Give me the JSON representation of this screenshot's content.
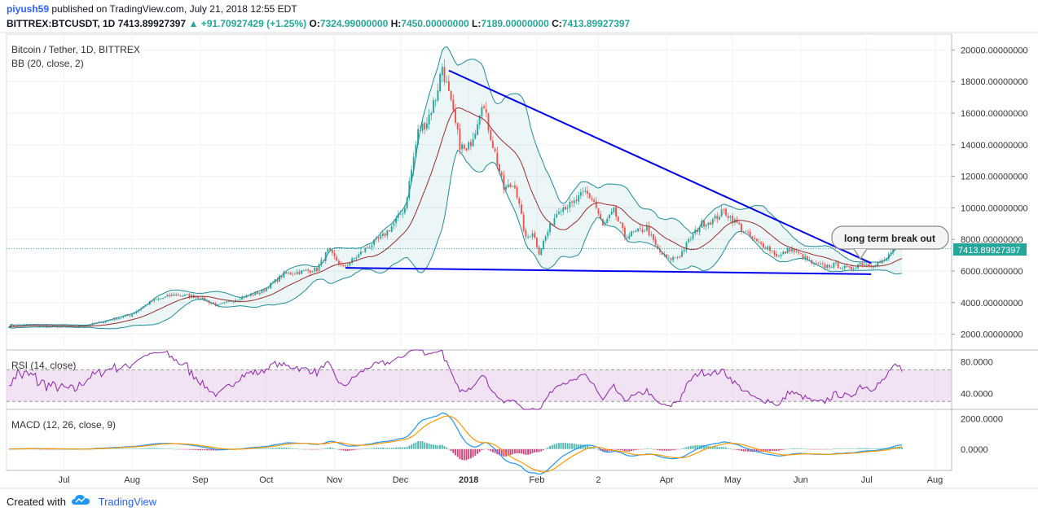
{
  "header": {
    "publisher": "piyush59",
    "published_text": "published on TradingView.com, July 21, 2018 12:55 EDT",
    "symbol": "BITTREX:BTCUSDT, 1D",
    "last": "7413.89927397",
    "change": "+91.70927429 (+1.25%)",
    "o_label": "O:",
    "o_value": "7324.99000000",
    "h_label": "H:",
    "h_value": "7450.00000000",
    "l_label": "L:",
    "l_value": "7189.00000000",
    "c_label": "C:",
    "c_value": "7413.89927397"
  },
  "footer": {
    "created_with": "Created with",
    "brand": "TradingView"
  },
  "colors": {
    "up": "#26a69a",
    "down": "#ef5350",
    "bb": "#1e8c99",
    "basis": "#9c2a2a",
    "trend": "#0000ee",
    "rsi": "#8e24aa",
    "macd": "#2196f3",
    "signal": "#ff9800"
  },
  "chart_data": [
    {
      "type": "candlestick",
      "title": "Bitcoin / Tether, 1D, BITTREX",
      "indicator": "BB (20, close, 2)",
      "ylim": [
        1000,
        21000
      ],
      "yticks": [
        2000,
        4000,
        6000,
        8000,
        10000,
        12000,
        14000,
        16000,
        18000,
        20000
      ],
      "ytick_labels": [
        "2000.00000000",
        "4000.00000000",
        "6000.00000000",
        "8000.00000000",
        "10000.00000000",
        "12000.00000000",
        "14000.00000000",
        "16000.00000000",
        "18000.00000000",
        "20000.00000000"
      ],
      "last_price_label": "7413.89927397",
      "last_price": 7413.9,
      "x_labels": [
        "Jul",
        "Aug",
        "Sep",
        "Oct",
        "Nov",
        "Dec",
        "2018",
        "Feb",
        "2",
        "Apr",
        "May",
        "Jun",
        "Jul",
        "Aug"
      ],
      "x_label_day": [
        25,
        56,
        87,
        117,
        148,
        178,
        209,
        240,
        268,
        299,
        329,
        360,
        390,
        421
      ],
      "price_anchors": [
        [
          0,
          2500
        ],
        [
          10,
          2550
        ],
        [
          20,
          2500
        ],
        [
          30,
          2450
        ],
        [
          40,
          2700
        ],
        [
          55,
          3200
        ],
        [
          65,
          4100
        ],
        [
          75,
          4500
        ],
        [
          85,
          4400
        ],
        [
          95,
          3800
        ],
        [
          105,
          4300
        ],
        [
          115,
          4700
        ],
        [
          125,
          5800
        ],
        [
          140,
          6100
        ],
        [
          145,
          7300
        ],
        [
          152,
          6200
        ],
        [
          158,
          6900
        ],
        [
          163,
          7500
        ],
        [
          170,
          8200
        ],
        [
          175,
          9000
        ],
        [
          180,
          10000
        ],
        [
          186,
          14800
        ],
        [
          190,
          15500
        ],
        [
          194,
          17000
        ],
        [
          197,
          19000
        ],
        [
          201,
          16500
        ],
        [
          205,
          14000
        ],
        [
          208,
          13500
        ],
        [
          212,
          15000
        ],
        [
          215,
          16800
        ],
        [
          220,
          14000
        ],
        [
          225,
          11200
        ],
        [
          230,
          11500
        ],
        [
          235,
          8000
        ],
        [
          238,
          8500
        ],
        [
          241,
          7200
        ],
        [
          245,
          8500
        ],
        [
          250,
          10000
        ],
        [
          256,
          10200
        ],
        [
          262,
          11000
        ],
        [
          266,
          10400
        ],
        [
          270,
          8800
        ],
        [
          275,
          9800
        ],
        [
          280,
          8200
        ],
        [
          290,
          8700
        ],
        [
          295,
          7300
        ],
        [
          300,
          6700
        ],
        [
          305,
          7000
        ],
        [
          310,
          8100
        ],
        [
          315,
          9000
        ],
        [
          320,
          9200
        ],
        [
          325,
          9800
        ],
        [
          331,
          9000
        ],
        [
          335,
          8400
        ],
        [
          340,
          7800
        ],
        [
          345,
          7500
        ],
        [
          350,
          6900
        ],
        [
          355,
          7400
        ],
        [
          360,
          7000
        ],
        [
          366,
          6400
        ],
        [
          371,
          6300
        ],
        [
          376,
          6400
        ],
        [
          382,
          6100
        ],
        [
          387,
          6500
        ],
        [
          392,
          6400
        ],
        [
          398,
          6600
        ],
        [
          402,
          7400
        ],
        [
          406,
          7414
        ]
      ],
      "trendlines": [
        {
          "name": "descending resistance",
          "from": [
            200,
            18700
          ],
          "to": [
            392,
            6500
          ]
        },
        {
          "name": "horizontal support",
          "from": [
            153,
            6200
          ],
          "to": [
            392,
            5800
          ]
        }
      ],
      "annotation": "long term break out"
    },
    {
      "type": "line",
      "title": "RSI (14, close)",
      "ylim": [
        20,
        95
      ],
      "band": [
        30,
        70
      ],
      "yticks": [
        40,
        80
      ],
      "ytick_labels": [
        "40.0000",
        "80.0000"
      ]
    },
    {
      "type": "histogram+line",
      "title": "MACD (12, 26, close, 9)",
      "ylim": [
        -1400,
        2600
      ],
      "yticks": [
        0,
        2000
      ],
      "ytick_labels": [
        "0.0000",
        "2000.0000"
      ]
    }
  ]
}
